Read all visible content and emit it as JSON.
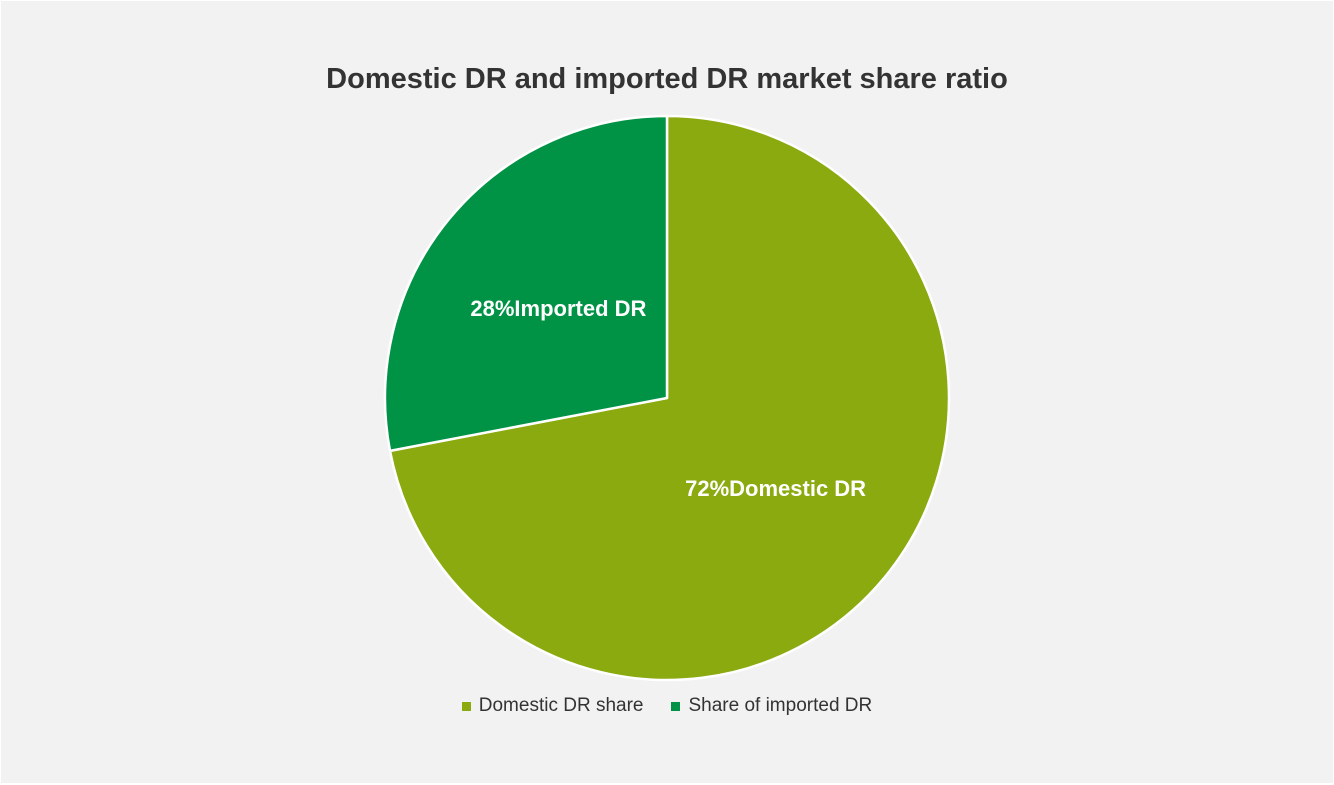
{
  "chart_data": {
    "type": "pie",
    "title": "Domestic DR and imported DR market share ratio",
    "slices": [
      {
        "legend": "Domestic DR share",
        "value": 72,
        "label": "72%Domestic DR",
        "color": "#8aaa0f"
      },
      {
        "legend": "Share of imported DR",
        "value": 28,
        "label": "28%Imported DR",
        "color": "#009245"
      }
    ],
    "start_angle_deg": 0,
    "direction": "clockwise",
    "legend_position": "bottom"
  }
}
